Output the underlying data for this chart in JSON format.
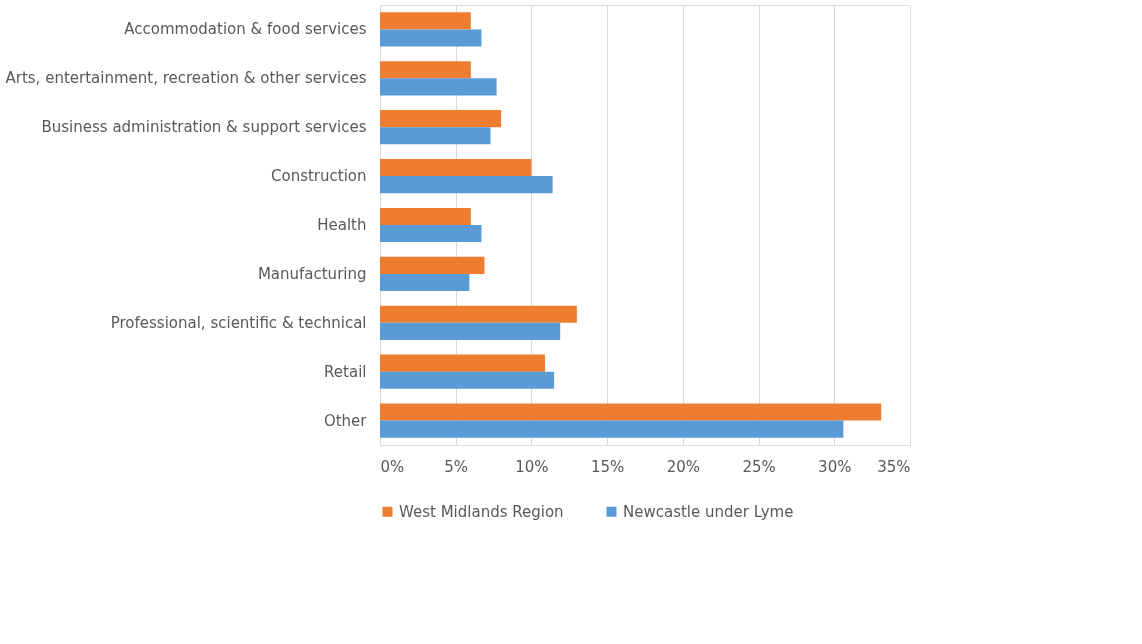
{
  "chart_data": {
    "type": "bar",
    "orientation": "horizontal",
    "categories": [
      "Accommodation & food services",
      "Arts, entertainment, recreation & other services",
      "Business administration & support services",
      "Construction",
      "Health",
      "Manufacturing",
      "Professional, scientific & technical",
      "Retail",
      "Other"
    ],
    "series": [
      {
        "name": "West Midlands Region",
        "color": "#ed7d31",
        "values": [
          6.0,
          6.0,
          8.0,
          10.0,
          6.0,
          6.9,
          13.0,
          10.9,
          33.1
        ]
      },
      {
        "name": "Newcastle under Lyme",
        "color": "#5b9bd5",
        "values": [
          6.7,
          7.7,
          7.3,
          11.4,
          6.7,
          5.9,
          11.9,
          11.5,
          30.6
        ]
      }
    ],
    "xlim": [
      0,
      35
    ],
    "xticks": [
      {
        "value": 0,
        "label": "0%"
      },
      {
        "value": 5,
        "label": "5%"
      },
      {
        "value": 10,
        "label": "10%"
      },
      {
        "value": 15,
        "label": "15%"
      },
      {
        "value": 20,
        "label": "20%"
      },
      {
        "value": 25,
        "label": "25%"
      },
      {
        "value": 30,
        "label": "30%"
      },
      {
        "value": 35,
        "label": "35%"
      }
    ],
    "grid": "x",
    "legend": "bottom"
  }
}
